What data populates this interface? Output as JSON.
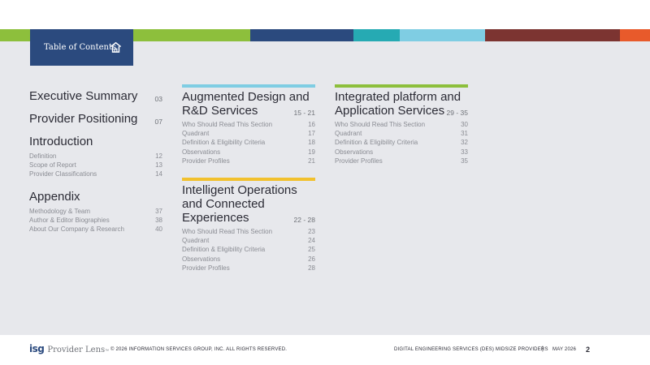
{
  "header": {
    "tab_label": "Table of Contents",
    "stripe_colors": [
      "#8dbf3c",
      "#2b4a7e",
      "#26aab3",
      "#7fcde3",
      "#7c3431",
      "#e85a2b"
    ]
  },
  "left": {
    "executive_summary": {
      "title": "Executive Summary",
      "page": "03"
    },
    "provider_positioning": {
      "title": "Provider Positioning",
      "page": "07"
    },
    "introduction": {
      "title": "Introduction",
      "items": [
        {
          "label": "Definition",
          "page": "12"
        },
        {
          "label": "Scope of Report",
          "page": "13"
        },
        {
          "label": "Provider Classifications",
          "page": "14"
        }
      ]
    },
    "appendix": {
      "title": "Appendix",
      "items": [
        {
          "label": "Methodology & Team",
          "page": "37"
        },
        {
          "label": "Author & Editor Biographies",
          "page": "38"
        },
        {
          "label": "About Our Company & Research",
          "page": "40"
        }
      ]
    }
  },
  "sections": [
    {
      "title_lines": [
        "Augmented Design and",
        "R&D Services"
      ],
      "pages": "15 - 21",
      "bar_color": "#7fcde3",
      "items": [
        {
          "label": "Who Should Read This Section",
          "page": "16"
        },
        {
          "label": "Quadrant",
          "page": "17"
        },
        {
          "label": "Definition & Eligibility Criteria",
          "page": "18"
        },
        {
          "label": "Observations",
          "page": "19"
        },
        {
          "label": "Provider Profiles",
          "page": "21"
        }
      ]
    },
    {
      "title_lines": [
        "Intelligent Operations",
        "and Connected",
        "Experiences"
      ],
      "pages": "22 - 28",
      "bar_color": "#f2c12e",
      "items": [
        {
          "label": "Who Should Read This Section",
          "page": "23"
        },
        {
          "label": "Quadrant",
          "page": "24"
        },
        {
          "label": "Definition & Eligibility Criteria",
          "page": "25"
        },
        {
          "label": "Observations",
          "page": "26"
        },
        {
          "label": "Provider Profiles",
          "page": "28"
        }
      ]
    },
    {
      "title_lines": [
        "Integrated platform and",
        "Application Services"
      ],
      "pages": "29 - 35",
      "bar_color": "#8dbf3c",
      "items": [
        {
          "label": "Who Should Read This Section",
          "page": "30"
        },
        {
          "label": "Quadrant",
          "page": "31"
        },
        {
          "label": "Definition & Eligibility Criteria",
          "page": "32"
        },
        {
          "label": "Observations",
          "page": "33"
        },
        {
          "label": "Provider Profiles",
          "page": "35"
        }
      ]
    }
  ],
  "footer": {
    "logo_isg": "isg",
    "logo_text": "Provider Lens",
    "logo_tm": "™",
    "copyright": "© 2026 INFORMATION SERVICES GROUP, INC. ALL RIGHTS RESERVED.",
    "report_title": "DIGITAL ENGINEERING SERVICES (DES) MIDSIZE PROVIDERS",
    "separator": "|",
    "date": "MAY 2026",
    "page_number": "2"
  }
}
